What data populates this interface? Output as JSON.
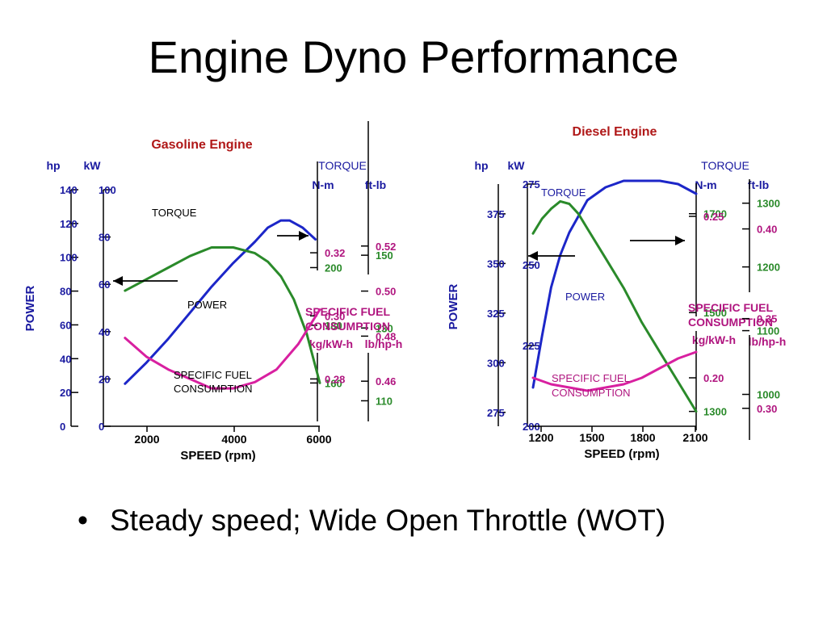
{
  "slide": {
    "title": "Engine Dyno Performance",
    "bullet": "Steady speed; Wide Open Throttle (WOT)"
  },
  "colors": {
    "title_red": "#b01818",
    "axis_blue": "#1a1aa0",
    "power_blue": "#1c26c8",
    "torque_green": "#2a8a2a",
    "sfc_magenta": "#b0157f",
    "sfc_line": "#d820a0",
    "axis_black": "#000000"
  },
  "chart_data": [
    {
      "type": "line",
      "title": "Gasoline Engine",
      "xlabel": "SPEED (rpm)",
      "ylabel": "POWER",
      "x_ticks": [
        "2000",
        "4000",
        "6000"
      ],
      "xlim": [
        1000,
        6000
      ],
      "axes": {
        "hp": {
          "label": "hp",
          "ticks": [
            "140",
            "120",
            "100",
            "80",
            "60",
            "40",
            "20",
            "0"
          ],
          "range": [
            0,
            140
          ]
        },
        "kw": {
          "label": "kW",
          "ticks": [
            "100",
            "80",
            "60",
            "40",
            "20",
            "0"
          ],
          "range": [
            0,
            100
          ]
        },
        "torque_header": "TORQUE",
        "nm": {
          "label": "N-m",
          "ticks": [
            "200",
            "180",
            "160"
          ],
          "range": [
            145,
            227
          ]
        },
        "ftlb": {
          "label": "ft-lb",
          "ticks": [
            "150",
            "130",
            "110"
          ],
          "range": [
            103,
            168
          ]
        },
        "sfc_header": "SPECIFIC FUEL CONSUMPTION",
        "kgkwh": {
          "label": "kg/kW-h",
          "ticks": [
            "0.32",
            "0.30",
            "0.28"
          ],
          "range": [
            0.265,
            0.34
          ]
        },
        "lbhph": {
          "label": "lb/hp-h",
          "ticks": [
            "0.52",
            "0.50",
            "0.48",
            "0.46"
          ],
          "range": [
            0.44,
            0.545
          ]
        }
      },
      "series": [
        {
          "name": "POWER",
          "axis": "kw",
          "x": [
            1500,
            2000,
            2500,
            3000,
            3500,
            4000,
            4500,
            4800,
            5100,
            5300,
            5600,
            5900
          ],
          "y": [
            18,
            27,
            37,
            48,
            59,
            69,
            78,
            84,
            87,
            87,
            84,
            79
          ]
        },
        {
          "name": "TORQUE",
          "axis": "nm",
          "x": [
            1500,
            2000,
            2500,
            3000,
            3500,
            4000,
            4500,
            4800,
            5100,
            5400,
            5700,
            6000
          ],
          "y": [
            192,
            196,
            200,
            204,
            207,
            207,
            205,
            202,
            197,
            189,
            177,
            160
          ]
        },
        {
          "name": "SPECIFIC FUEL CONSUMPTION",
          "axis": "kgkwh",
          "x": [
            1500,
            2000,
            2500,
            3000,
            3500,
            4000,
            4500,
            5000,
            5500,
            6000
          ],
          "y": [
            0.293,
            0.287,
            0.283,
            0.28,
            0.277,
            0.277,
            0.279,
            0.283,
            0.291,
            0.302
          ]
        }
      ],
      "annotations": {
        "torque": "TORQUE",
        "power": "POWER",
        "sfc": "SPECIFIC FUEL CONSUMPTION"
      }
    },
    {
      "type": "line",
      "title": "Diesel Engine",
      "xlabel": "SPEED (rpm)",
      "ylabel": "POWER",
      "x_ticks": [
        "1200",
        "1500",
        "1800",
        "2100"
      ],
      "xlim": [
        1200,
        2100
      ],
      "axes": {
        "hp": {
          "label": "hp",
          "ticks": [
            "375",
            "350",
            "325",
            "300",
            "275"
          ],
          "range": [
            268,
            390
          ]
        },
        "kw": {
          "label": "kW",
          "ticks": [
            "275",
            "250",
            "225",
            "200"
          ],
          "range": [
            200,
            275
          ]
        },
        "torque_header": "TORQUE",
        "nm": {
          "label": "N-m",
          "ticks": [
            "1700",
            "1500",
            "1300"
          ],
          "range": [
            1270,
            1760
          ]
        },
        "ftlb": {
          "label": "ft-lb",
          "ticks": [
            "1300",
            "1200",
            "1100",
            "1000"
          ],
          "range": [
            950,
            1330
          ]
        },
        "sfc_header": "SPECIFIC FUEL CONSUMPTION",
        "kgkwh": {
          "label": "kg/kW-h",
          "ticks": [
            "0.25",
            "0.20"
          ],
          "range": [
            0.185,
            0.26
          ]
        },
        "lbhph": {
          "label": "lb/hp-h",
          "ticks": [
            "0.40",
            "0.35",
            "0.30"
          ],
          "range": [
            0.29,
            0.425
          ]
        }
      },
      "series": [
        {
          "name": "POWER",
          "axis": "kw",
          "x": [
            1200,
            1250,
            1300,
            1350,
            1400,
            1450,
            1500,
            1600,
            1700,
            1800,
            1900,
            2000,
            2100
          ],
          "y": [
            212,
            228,
            243,
            253,
            260,
            265,
            270,
            274,
            276,
            276,
            276,
            275,
            272
          ]
        },
        {
          "name": "TORQUE",
          "axis": "nm",
          "x": [
            1200,
            1250,
            1300,
            1350,
            1400,
            1450,
            1500,
            1600,
            1700,
            1800,
            1900,
            2000,
            2100
          ],
          "y": [
            1660,
            1690,
            1710,
            1725,
            1720,
            1700,
            1670,
            1610,
            1550,
            1480,
            1420,
            1360,
            1300
          ]
        },
        {
          "name": "SPECIFIC FUEL CONSUMPTION",
          "axis": "kgkwh",
          "x": [
            1200,
            1300,
            1400,
            1500,
            1600,
            1700,
            1800,
            1900,
            2000,
            2100
          ],
          "y": [
            0.2,
            0.198,
            0.197,
            0.196,
            0.197,
            0.198,
            0.2,
            0.203,
            0.206,
            0.208
          ]
        }
      ],
      "annotations": {
        "torque": "TORQUE",
        "power": "POWER",
        "sfc": "SPECIFIC FUEL CONSUMPTION"
      }
    }
  ]
}
